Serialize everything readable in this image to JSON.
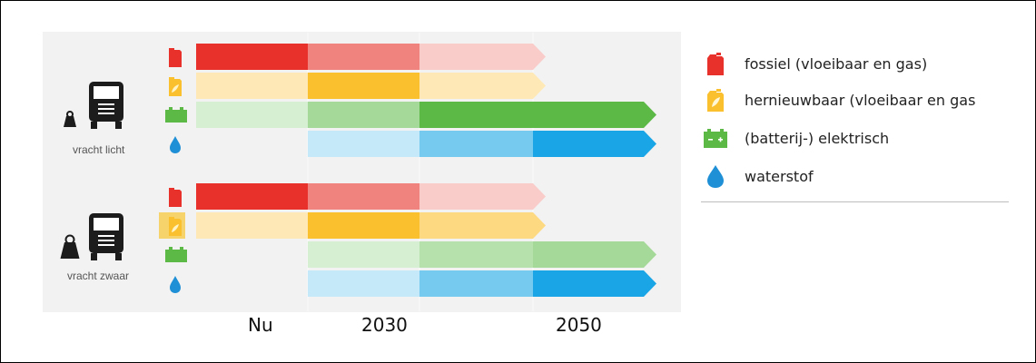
{
  "colors": {
    "fossil": "#e8312a",
    "renewable": "#fbc02d",
    "electric": "#5cb946",
    "hydrogen": "#1aa6e6",
    "panel": "#f2f2f2"
  },
  "chart_data": {
    "type": "bar",
    "x_categories": [
      "Nu",
      "2030",
      "2050"
    ],
    "legend": [
      {
        "key": "fossil",
        "label": "fossiel (vloeibaar en gas)",
        "icon": "fuel-can-icon"
      },
      {
        "key": "renewable",
        "label": "hernieuwbaar (vloeibaar en gas",
        "icon": "leaf-fuel-can-icon"
      },
      {
        "key": "electric",
        "label": "(batterij-) elektrisch",
        "icon": "battery-icon"
      },
      {
        "key": "hydrogen",
        "label": "waterstof",
        "icon": "water-drop-icon"
      }
    ],
    "groups": [
      {
        "label": "vracht licht",
        "icon": "light-truck-icon",
        "rows": [
          {
            "key": "fossil",
            "segments": [
              {
                "period": "Nu",
                "intensity": 1.0
              },
              {
                "period": "2030",
                "intensity": 0.6
              },
              {
                "period": "2050",
                "intensity": 0.25
              }
            ],
            "arrow": true
          },
          {
            "key": "renewable",
            "segments": [
              {
                "period": "Nu",
                "intensity": 0.35
              },
              {
                "period": "2030",
                "intensity": 1.0
              },
              {
                "period": "2050",
                "intensity": 0.35
              }
            ],
            "arrow": true
          },
          {
            "key": "electric",
            "segments": [
              {
                "period": "Nu",
                "intensity": 0.25
              },
              {
                "period": "2030",
                "intensity": 0.55
              },
              {
                "period": "2050",
                "intensity": 1.0
              },
              {
                "period": "after-2050",
                "intensity": 1.0
              }
            ],
            "arrow": true
          },
          {
            "key": "hydrogen",
            "segments": [
              {
                "period": "2030",
                "intensity": 0.25
              },
              {
                "period": "2050",
                "intensity": 0.6
              },
              {
                "period": "after-2050",
                "intensity": 1.0
              }
            ],
            "arrow": true
          }
        ]
      },
      {
        "label": "vracht zwaar",
        "icon": "heavy-truck-icon",
        "rows": [
          {
            "key": "fossil",
            "segments": [
              {
                "period": "Nu",
                "intensity": 1.0
              },
              {
                "period": "2030",
                "intensity": 0.6
              },
              {
                "period": "2050",
                "intensity": 0.25
              }
            ],
            "arrow": true
          },
          {
            "key": "renewable",
            "segments": [
              {
                "period": "Nu",
                "intensity": 0.35
              },
              {
                "period": "2030",
                "intensity": 1.0
              },
              {
                "period": "2050",
                "intensity": 0.6
              }
            ],
            "arrow": true
          },
          {
            "key": "electric",
            "segments": [
              {
                "period": "2030",
                "intensity": 0.25
              },
              {
                "period": "2050",
                "intensity": 0.45
              },
              {
                "period": "after-2050",
                "intensity": 0.55
              }
            ],
            "arrow": true
          },
          {
            "key": "hydrogen",
            "segments": [
              {
                "period": "2030",
                "intensity": 0.25
              },
              {
                "period": "2050",
                "intensity": 0.6
              },
              {
                "period": "after-2050",
                "intensity": 1.0
              }
            ],
            "arrow": true
          }
        ]
      }
    ]
  }
}
